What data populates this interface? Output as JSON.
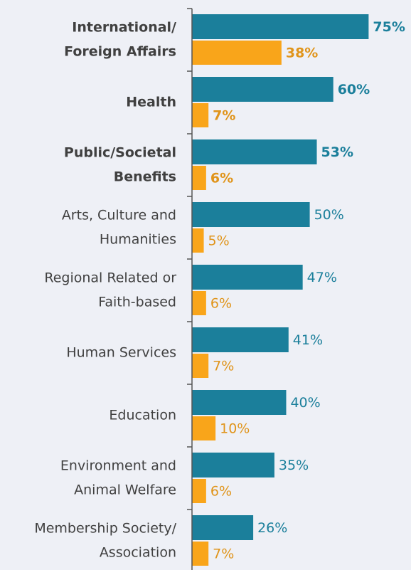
{
  "chart_data": {
    "type": "bar",
    "orientation": "horizontal",
    "categories": [
      [
        "International/",
        "Foreign Affairs"
      ],
      [
        "Health"
      ],
      [
        "Public/Societal",
        "Benefits"
      ],
      [
        "Arts, Culture and",
        "Humanities"
      ],
      [
        "Regional Related or",
        "Faith-based"
      ],
      [
        "Human Services"
      ],
      [
        "Education"
      ],
      [
        "Environment and",
        "Animal Welfare"
      ],
      [
        "Membership Society/",
        "Association"
      ]
    ],
    "bold": [
      true,
      true,
      true,
      false,
      false,
      false,
      false,
      false,
      false
    ],
    "series": [
      {
        "color": "#1b7f9b",
        "values": [
          75,
          60,
          53,
          50,
          47,
          41,
          40,
          35,
          26
        ],
        "value_labels": [
          "75%",
          "60%",
          "53%",
          "50%",
          "47%",
          "41%",
          "40%",
          "35%",
          "26%"
        ]
      },
      {
        "color": "#f9a51a",
        "label_color": "#e0941a",
        "values": [
          38,
          7,
          6,
          5,
          6,
          7,
          10,
          6,
          7
        ],
        "value_labels": [
          "38%",
          "7%",
          "6%",
          "5%",
          "6%",
          "7%",
          "10%",
          "6%",
          "7%"
        ]
      }
    ],
    "xlim": [
      0,
      93
    ]
  }
}
